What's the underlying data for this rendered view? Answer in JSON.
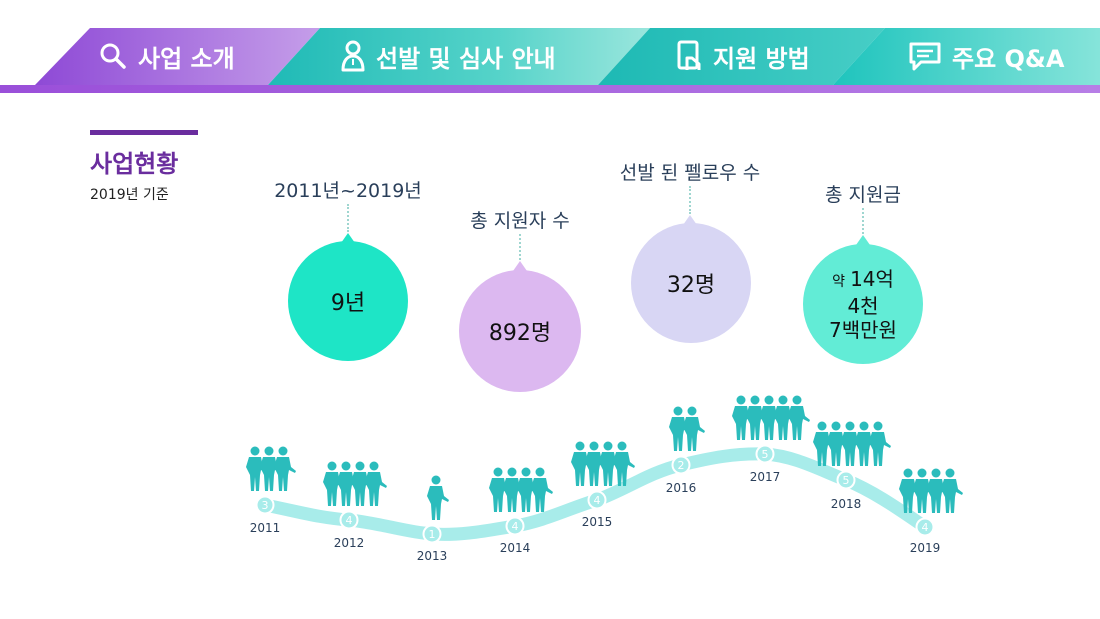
{
  "nav": {
    "tabs": [
      {
        "label": "사업 소개",
        "icon": "search-icon"
      },
      {
        "label": "선발 및 심사 안내",
        "icon": "person-icon"
      },
      {
        "label": "지원 방법",
        "icon": "document-hand-icon"
      },
      {
        "label": "주요 Q&A",
        "icon": "chat-icon"
      }
    ]
  },
  "section": {
    "title": "사업현황",
    "subtitle": "2019년 기준"
  },
  "stats": [
    {
      "label": "2011년~2019년",
      "value": "9년",
      "color": "#1ee5c6"
    },
    {
      "label": "총 지원자 수",
      "value": "892명",
      "color": "#dcb8f0"
    },
    {
      "label": "선발 된 펠로우 수",
      "value": "32명",
      "color": "#d8d6f4"
    },
    {
      "label": "총 지원금",
      "value_prefix": "약",
      "value_line1": "14억",
      "value_line2": "4천",
      "value_line3": "7백만원",
      "color": "#62ecd6"
    }
  ],
  "timeline": {
    "points": [
      {
        "year": "2011",
        "count": 3
      },
      {
        "year": "2012",
        "count": 4
      },
      {
        "year": "2013",
        "count": 1
      },
      {
        "year": "2014",
        "count": 4
      },
      {
        "year": "2015",
        "count": 4
      },
      {
        "year": "2016",
        "count": 2
      },
      {
        "year": "2017",
        "count": 5
      },
      {
        "year": "2018",
        "count": 5
      },
      {
        "year": "2019",
        "count": 4
      }
    ]
  },
  "colors": {
    "purple": "#8e4fd1",
    "teal": "#27c2bd",
    "person": "#2bbcbc",
    "track": "#a8ecea"
  }
}
